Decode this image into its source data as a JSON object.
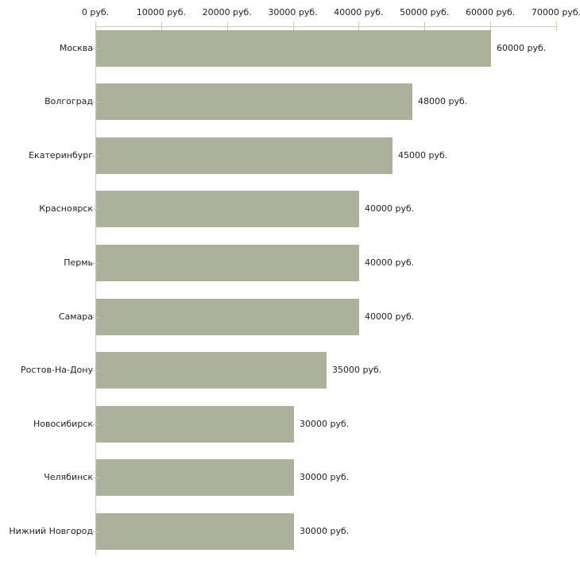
{
  "chart_data": {
    "type": "bar",
    "orientation": "horizontal",
    "title": "",
    "xlabel": "",
    "ylabel": "",
    "xlim": [
      0,
      70000
    ],
    "grid": false,
    "legend": false,
    "categories": [
      "Москва",
      "Волгоград",
      "Екатеринбург",
      "Красноярск",
      "Пермь",
      "Самара",
      "Ростов-На-Дону",
      "Новосибирск",
      "Челябинск",
      "Нижний Новгород"
    ],
    "values": [
      60000,
      48000,
      45000,
      40000,
      40000,
      40000,
      35000,
      30000,
      30000,
      30000
    ],
    "value_labels": [
      "60000 руб.",
      "48000 руб.",
      "45000 руб.",
      "40000 руб.",
      "40000 руб.",
      "40000 руб.",
      "35000 руб.",
      "30000 руб.",
      "30000 руб.",
      "30000 руб."
    ],
    "x_tick_values": [
      0,
      10000,
      20000,
      30000,
      40000,
      50000,
      60000,
      70000
    ],
    "x_tick_labels": [
      "0 руб.",
      "10000 руб.",
      "20000 руб.",
      "30000 руб.",
      "40000 руб.",
      "50000 руб.",
      "60000 руб.",
      "70000 руб."
    ],
    "colors": {
      "bar": "#acb29a",
      "axis": "#c8c8c8",
      "tick": "#cccc99",
      "text": "#222222",
      "background": "#ffffff"
    }
  }
}
